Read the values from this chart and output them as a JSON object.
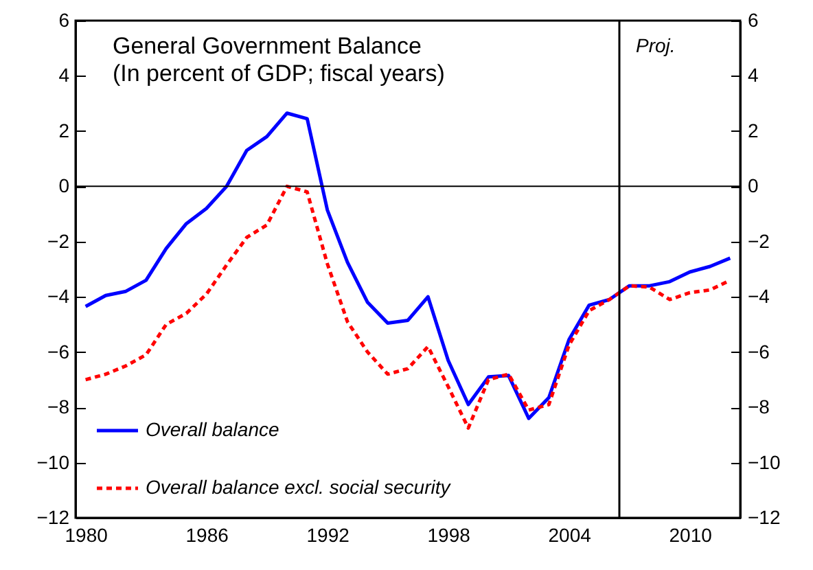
{
  "chart_data": {
    "type": "line",
    "title": "General Government Balance",
    "subtitle": "(In percent of GDP; fiscal years)",
    "x": [
      1980,
      1981,
      1982,
      1983,
      1984,
      1985,
      1986,
      1987,
      1988,
      1989,
      1990,
      1991,
      1992,
      1993,
      1994,
      1995,
      1996,
      1997,
      1998,
      1999,
      2000,
      2001,
      2002,
      2003,
      2004,
      2005,
      2006,
      2007,
      2008,
      2009,
      2010,
      2011,
      2012
    ],
    "series": [
      {
        "name": "Overall balance",
        "color": "#0000ff",
        "line_style": "solid",
        "values": [
          -4.35,
          -3.95,
          -3.8,
          -3.4,
          -2.25,
          -1.35,
          -0.8,
          0,
          1.3,
          1.8,
          2.65,
          2.45,
          -0.85,
          -2.75,
          -4.2,
          -4.95,
          -4.85,
          -4.0,
          -6.3,
          -7.9,
          -6.9,
          -6.85,
          -8.4,
          -7.65,
          -5.55,
          -4.3,
          -4.1,
          -3.6,
          -3.6,
          -3.45,
          -3.1,
          -2.9,
          -2.6
        ]
      },
      {
        "name": "Overall balance excl. social security",
        "color": "#ff0000",
        "line_style": "dotted",
        "values": [
          -7.0,
          -6.8,
          -6.5,
          -6.1,
          -5.0,
          -4.6,
          -3.9,
          -2.85,
          -1.85,
          -1.4,
          0,
          -0.2,
          -2.8,
          -4.9,
          -6.0,
          -6.8,
          -6.6,
          -5.8,
          -7.25,
          -8.75,
          -7.0,
          -6.8,
          -8.1,
          -7.9,
          -5.75,
          -4.5,
          -4.1,
          -3.6,
          -3.65,
          -4.1,
          -3.85,
          -3.75,
          -3.4
        ]
      }
    ],
    "xlim": [
      1979.5,
      2012.5
    ],
    "xticks": [
      1980,
      1986,
      1992,
      1998,
      2004,
      2010
    ],
    "ylim": [
      -12,
      6
    ],
    "yticks": [
      -12,
      -10,
      -8,
      -6,
      -4,
      -2,
      0,
      2,
      4,
      6
    ],
    "y2lim": [
      -12,
      6
    ],
    "y2ticks": [
      -12,
      -10,
      -8,
      -6,
      -4,
      -2,
      0,
      2,
      4,
      6
    ],
    "ref_lines": [
      {
        "axis": "y",
        "value": 0,
        "label": null,
        "color": "#000000"
      },
      {
        "axis": "x",
        "value": 2006.5,
        "label": "Proj.",
        "color": "#000000"
      }
    ],
    "grid": false,
    "legend": "bottom left",
    "marker": "none"
  }
}
